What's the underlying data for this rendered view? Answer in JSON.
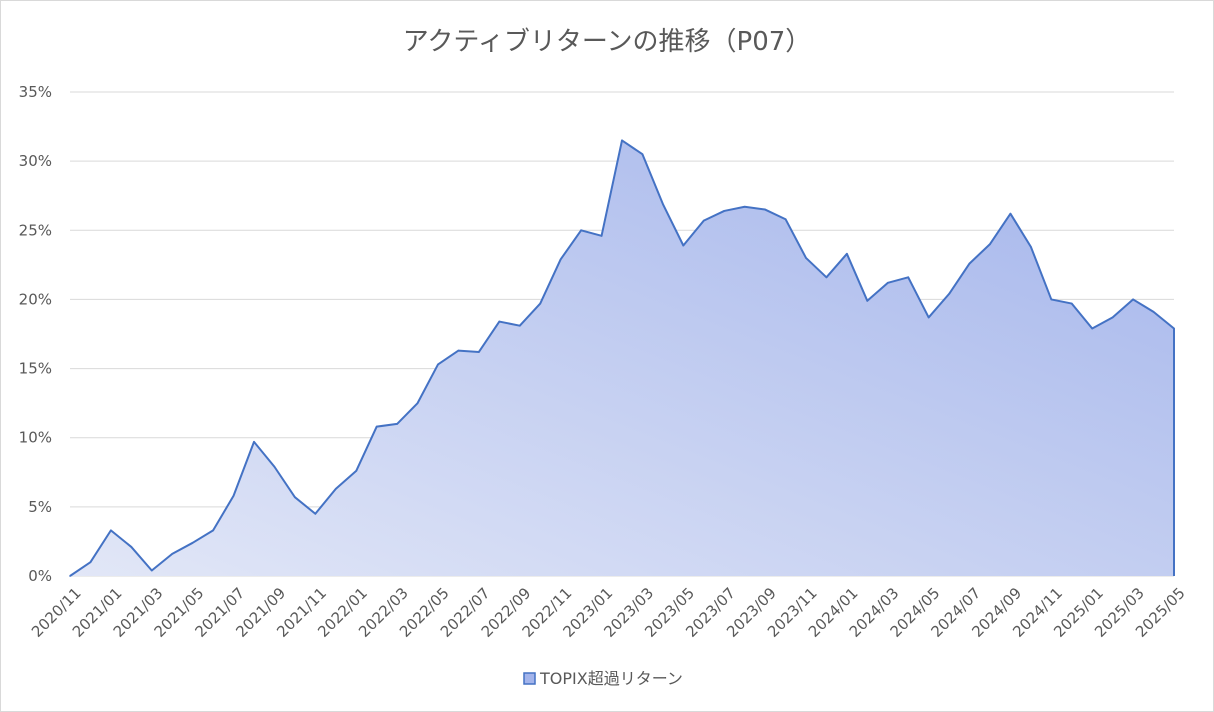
{
  "chart_data": {
    "type": "area",
    "title": "アクティブリターンの推移（P07）",
    "xlabel": "",
    "ylabel": "",
    "ylim": [
      0,
      35
    ],
    "y_ticks": [
      0,
      5,
      10,
      15,
      20,
      25,
      30,
      35
    ],
    "y_tick_labels": [
      "0%",
      "5%",
      "10%",
      "15%",
      "20%",
      "25%",
      "30%",
      "35%"
    ],
    "x": [
      "2020/11",
      "2020/12",
      "2021/01",
      "2021/02",
      "2021/03",
      "2021/04",
      "2021/05",
      "2021/06",
      "2021/07",
      "2021/08",
      "2021/09",
      "2021/10",
      "2021/11",
      "2021/12",
      "2022/01",
      "2022/02",
      "2022/03",
      "2022/04",
      "2022/05",
      "2022/06",
      "2022/07",
      "2022/08",
      "2022/09",
      "2022/10",
      "2022/11",
      "2022/12",
      "2023/01",
      "2023/02",
      "2023/03",
      "2023/04",
      "2023/05",
      "2023/06",
      "2023/07",
      "2023/08",
      "2023/09",
      "2023/10",
      "2023/11",
      "2023/12",
      "2024/01",
      "2024/02",
      "2024/03",
      "2024/04",
      "2024/05",
      "2024/06",
      "2024/07",
      "2024/08",
      "2024/09",
      "2024/10",
      "2024/11",
      "2024/12",
      "2025/01",
      "2025/02",
      "2025/03",
      "2025/04",
      "2025/05"
    ],
    "x_tick_labels": [
      "2020/11",
      "2021/01",
      "2021/03",
      "2021/05",
      "2021/07",
      "2021/09",
      "2021/11",
      "2022/01",
      "2022/03",
      "2022/05",
      "2022/07",
      "2022/09",
      "2022/11",
      "2023/01",
      "2023/03",
      "2023/05",
      "2023/07",
      "2023/09",
      "2023/11",
      "2024/01",
      "2024/03",
      "2024/05",
      "2024/07",
      "2024/09",
      "2024/11",
      "2025/01",
      "2025/03",
      "2025/05"
    ],
    "series": [
      {
        "name": "TOPIX超過リターン",
        "values": [
          0.0,
          1.0,
          3.3,
          2.1,
          0.4,
          1.6,
          2.4,
          3.3,
          5.8,
          9.7,
          7.9,
          5.7,
          4.5,
          6.3,
          7.6,
          10.8,
          11.0,
          12.5,
          15.3,
          16.3,
          16.2,
          18.4,
          18.1,
          19.7,
          22.9,
          25.0,
          24.6,
          31.5,
          30.5,
          26.9,
          23.9,
          25.7,
          26.4,
          26.7,
          26.5,
          25.8,
          23.0,
          21.6,
          23.3,
          19.9,
          21.2,
          21.6,
          18.7,
          20.4,
          22.6,
          24.0,
          26.2,
          23.8,
          20.0,
          19.7,
          17.9,
          18.7,
          20.0,
          19.1,
          17.9
        ]
      }
    ],
    "grid": true,
    "legend": "bottom",
    "colors": {
      "line": "#4472c4",
      "fill_start": "#e2e7f7",
      "fill_end": "#a3b4eb",
      "grid": "#d9d9d9",
      "text": "#595959"
    }
  }
}
